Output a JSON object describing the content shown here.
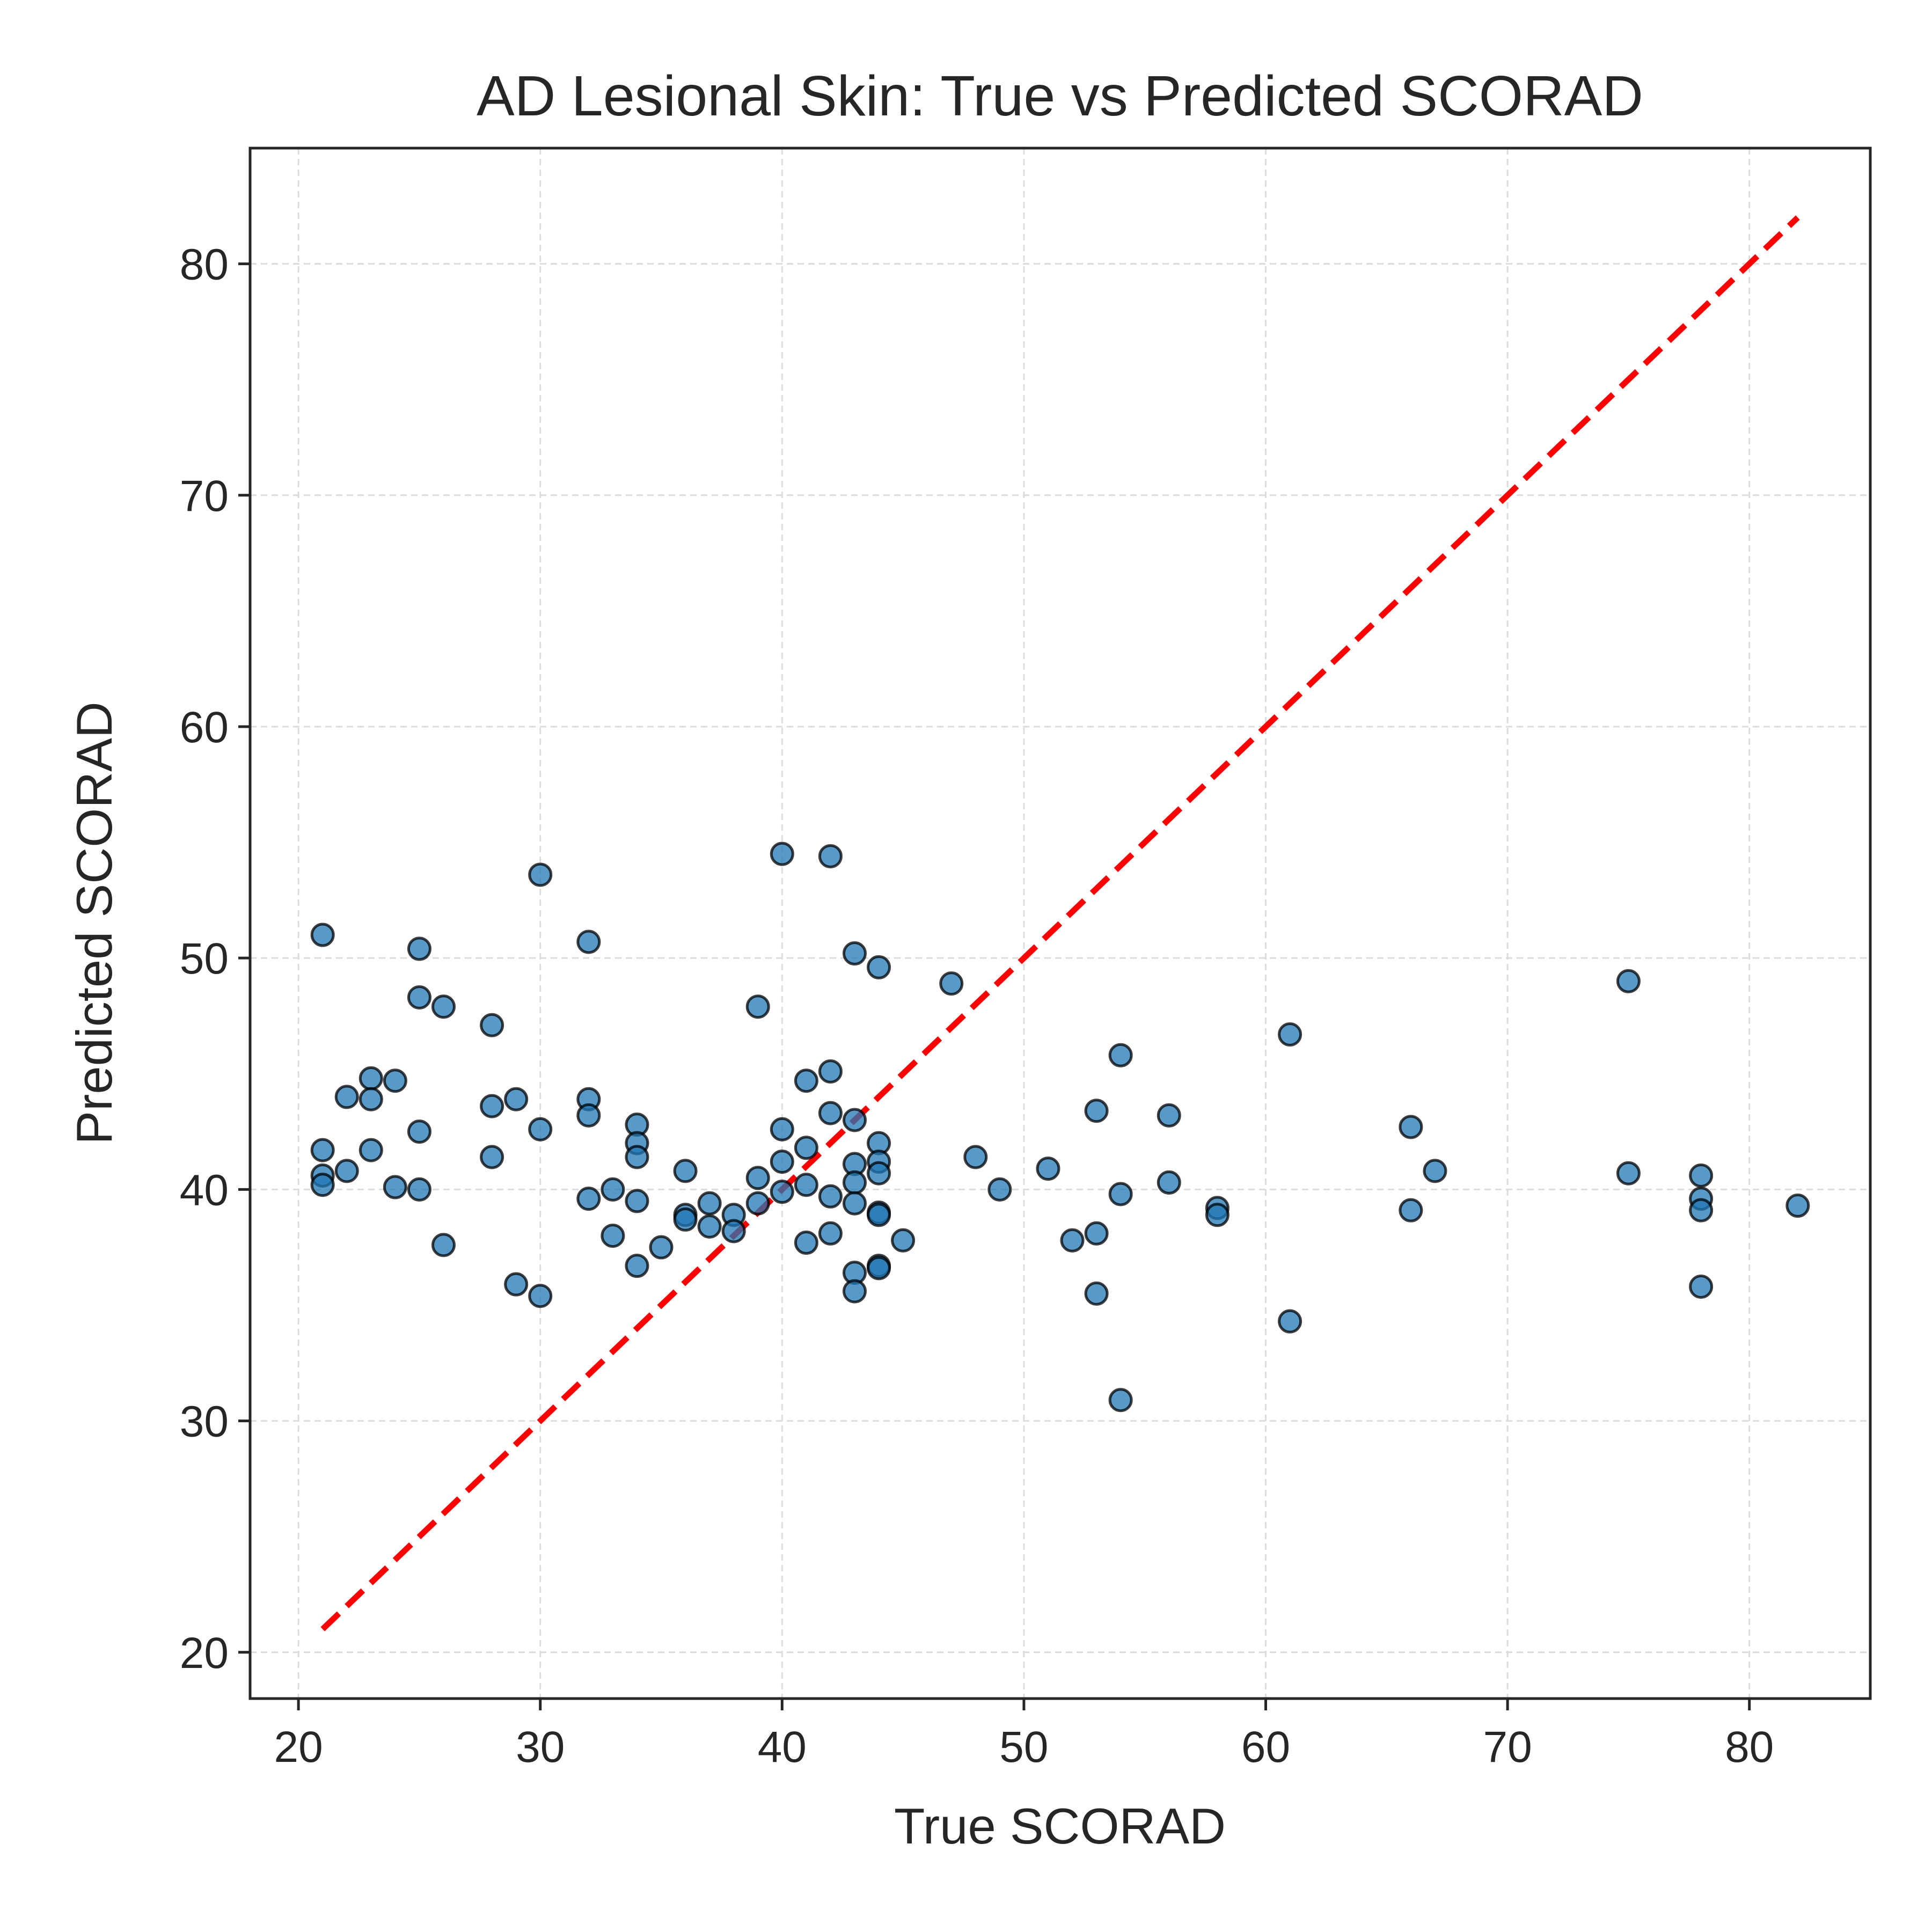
{
  "chart_data": {
    "type": "scatter",
    "title": "AD Lesional Skin: True vs Predicted SCORAD",
    "xlabel": "True SCORAD",
    "ylabel": "Predicted SCORAD",
    "xlim": [
      18,
      85
    ],
    "ylim": [
      18,
      85
    ],
    "xticks": [
      20,
      30,
      40,
      50,
      60,
      70,
      80
    ],
    "yticks": [
      20,
      30,
      40,
      50,
      60,
      70,
      80
    ],
    "grid": true,
    "legend": "none",
    "reference_line": {
      "style": "dashed",
      "color": "#ff0000",
      "x": [
        21,
        82
      ],
      "y": [
        21,
        82
      ]
    },
    "series": [
      {
        "marker_color": "#1f77b4",
        "edge_color": "#000000",
        "points": [
          [
            21,
            51.0
          ],
          [
            21,
            41.7
          ],
          [
            21,
            40.6
          ],
          [
            21,
            40.2
          ],
          [
            22,
            44.0
          ],
          [
            22,
            40.8
          ],
          [
            23,
            44.8
          ],
          [
            23,
            43.9
          ],
          [
            23,
            41.7
          ],
          [
            24,
            44.7
          ],
          [
            24,
            40.1
          ],
          [
            25,
            50.4
          ],
          [
            25,
            48.3
          ],
          [
            25,
            42.5
          ],
          [
            25,
            40.0
          ],
          [
            26,
            47.9
          ],
          [
            26,
            37.6
          ],
          [
            28,
            47.1
          ],
          [
            28,
            43.6
          ],
          [
            28,
            41.4
          ],
          [
            29,
            43.9
          ],
          [
            29,
            35.9
          ],
          [
            30,
            53.6
          ],
          [
            30,
            42.6
          ],
          [
            30,
            35.4
          ],
          [
            32,
            50.7
          ],
          [
            32,
            43.9
          ],
          [
            32,
            43.2
          ],
          [
            32,
            39.6
          ],
          [
            33,
            40.0
          ],
          [
            33,
            38.0
          ],
          [
            34,
            42.8
          ],
          [
            34,
            42.0
          ],
          [
            34,
            41.4
          ],
          [
            34,
            39.5
          ],
          [
            34,
            36.7
          ],
          [
            35,
            37.5
          ],
          [
            36,
            40.8
          ],
          [
            36,
            38.9
          ],
          [
            36,
            38.7
          ],
          [
            37,
            39.4
          ],
          [
            37,
            38.4
          ],
          [
            38,
            38.9
          ],
          [
            38,
            38.2
          ],
          [
            39,
            47.9
          ],
          [
            39,
            40.5
          ],
          [
            39,
            39.4
          ],
          [
            40,
            54.5
          ],
          [
            40,
            42.6
          ],
          [
            40,
            41.2
          ],
          [
            40,
            39.9
          ],
          [
            41,
            44.7
          ],
          [
            41,
            41.8
          ],
          [
            41,
            40.2
          ],
          [
            41,
            37.7
          ],
          [
            42,
            54.4
          ],
          [
            42,
            45.1
          ],
          [
            42,
            43.3
          ],
          [
            42,
            39.7
          ],
          [
            42,
            38.1
          ],
          [
            43,
            50.2
          ],
          [
            43,
            43.0
          ],
          [
            43,
            41.1
          ],
          [
            43,
            40.3
          ],
          [
            43,
            39.4
          ],
          [
            43,
            36.4
          ],
          [
            43,
            35.6
          ],
          [
            44,
            49.6
          ],
          [
            44,
            42.0
          ],
          [
            44,
            41.2
          ],
          [
            44,
            40.7
          ],
          [
            44,
            39.0
          ],
          [
            44,
            38.9
          ],
          [
            44,
            36.7
          ],
          [
            44,
            36.6
          ],
          [
            45,
            37.8
          ],
          [
            47,
            48.9
          ],
          [
            48,
            41.4
          ],
          [
            49,
            40.0
          ],
          [
            51,
            40.9
          ],
          [
            52,
            37.8
          ],
          [
            53,
            43.4
          ],
          [
            53,
            38.1
          ],
          [
            53,
            35.5
          ],
          [
            54,
            45.8
          ],
          [
            54,
            39.8
          ],
          [
            54,
            30.9
          ],
          [
            56,
            43.2
          ],
          [
            56,
            40.3
          ],
          [
            58,
            39.2
          ],
          [
            58,
            38.9
          ],
          [
            61,
            46.7
          ],
          [
            61,
            34.3
          ],
          [
            66,
            42.7
          ],
          [
            66,
            39.1
          ],
          [
            67,
            40.8
          ],
          [
            75,
            49.0
          ],
          [
            75,
            40.7
          ],
          [
            78,
            40.6
          ],
          [
            78,
            39.6
          ],
          [
            78,
            39.1
          ],
          [
            78,
            35.8
          ],
          [
            82,
            39.3
          ]
        ]
      }
    ]
  }
}
